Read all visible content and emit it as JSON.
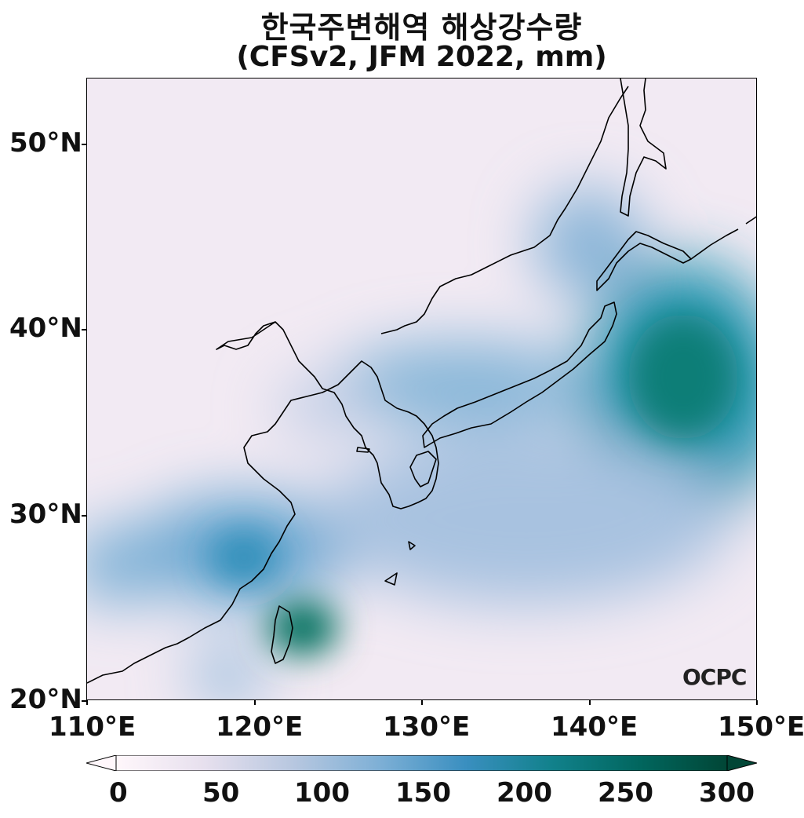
{
  "title": "한국주변해역 해상강수량",
  "subtitle": "(CFSv2, JFM 2022, mm)",
  "map": {
    "lon_range": [
      110,
      150
    ],
    "lat_range": [
      20,
      53.5
    ],
    "y_ticks": [
      {
        "label": "50°N",
        "lat": 50
      },
      {
        "label": "40°N",
        "lat": 40
      },
      {
        "label": "30°N",
        "lat": 30
      },
      {
        "label": "20°N",
        "lat": 20
      }
    ],
    "x_ticks": [
      {
        "label": "110°E",
        "lon": 110
      },
      {
        "label": "120°E",
        "lon": 120
      },
      {
        "label": "130°E",
        "lon": 130
      },
      {
        "label": "140°E",
        "lon": 140
      },
      {
        "label": "150°E",
        "lon": 150
      }
    ],
    "precip_maxima": [
      {
        "lon": 145.5,
        "lat": 38.5,
        "value_mm": 260
      },
      {
        "lon": 122.0,
        "lat": 24.0,
        "value_mm": 280
      },
      {
        "lon": 131.5,
        "lat": 36.5,
        "value_mm": 180
      },
      {
        "lon": 141.0,
        "lat": 43.5,
        "value_mm": 150
      },
      {
        "lon": 118.0,
        "lat": 29.0,
        "value_mm": 170
      },
      {
        "lon": 111.0,
        "lat": 27.0,
        "value_mm": 140
      },
      {
        "lon": 136.0,
        "lat": 31.0,
        "value_mm": 150
      },
      {
        "lon": 118.5,
        "lat": 21.0,
        "value_mm": 120
      }
    ]
  },
  "colorbar": {
    "ticks": [
      "0",
      "50",
      "100",
      "150",
      "200",
      "250",
      "300"
    ],
    "min": 0,
    "max": 300,
    "extend": "both",
    "colors": [
      "#fff7fb",
      "#e7e0ee",
      "#b9c8e0",
      "#7fb0d6",
      "#3a8fc0",
      "#11818b",
      "#01665e",
      "#014636"
    ]
  },
  "logo": "OCPC"
}
